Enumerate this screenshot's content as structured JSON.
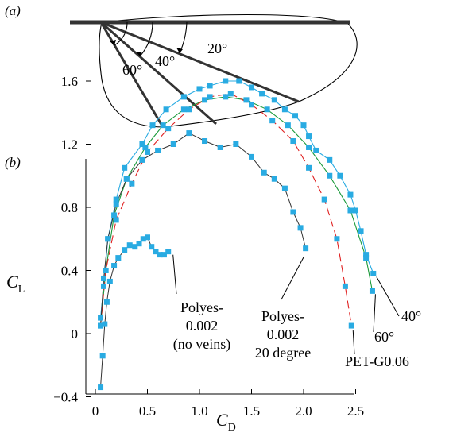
{
  "panel_a": {
    "label": "(a)",
    "angle_labels": [
      "60°",
      "40°",
      "20°"
    ]
  },
  "panel_b": {
    "label": "(b)"
  },
  "chart_data": {
    "type": "scatter",
    "xlabel_main": "C",
    "xlabel_sub": "D",
    "ylabel_main": "C",
    "ylabel_sub": "L",
    "xlim": [
      -0.1,
      2.75
    ],
    "ylim": [
      -0.5,
      1.65
    ],
    "x_ticks": [
      0,
      0.5,
      1.0,
      1.5,
      2.0,
      2.5
    ],
    "x_tick_labels": [
      "0",
      "0.5",
      "1.0",
      "1.5",
      "2.0",
      "2.5"
    ],
    "y_ticks": [
      -0.4,
      0,
      0.4,
      0.8,
      1.2,
      1.6
    ],
    "y_tick_labels": [
      "−0.4",
      "0",
      "0.4",
      "0.8",
      "1.2",
      "1.6"
    ],
    "colors": {
      "marker": "#29abe2",
      "line_40": "#29abe2",
      "line_60": "#1a9a3a",
      "line_pet": "#e02020",
      "line_polyes20": "#333333",
      "line_noveins": "#333333"
    },
    "series": [
      {
        "name": "40°",
        "line": "line_40",
        "x": [
          0.05,
          0.08,
          0.12,
          0.2,
          0.28,
          0.45,
          0.55,
          0.68,
          0.85,
          1.0,
          1.1,
          1.25,
          1.38,
          1.5,
          1.6,
          1.72,
          1.82,
          1.92,
          2.0,
          2.05,
          2.12,
          2.25,
          2.35,
          2.45,
          2.5,
          2.55,
          2.6,
          2.67
        ],
        "y": [
          0.1,
          0.3,
          0.6,
          0.85,
          1.05,
          1.2,
          1.32,
          1.42,
          1.5,
          1.55,
          1.57,
          1.6,
          1.6,
          1.56,
          1.52,
          1.48,
          1.42,
          1.38,
          1.32,
          1.25,
          1.16,
          1.1,
          1.0,
          0.88,
          0.78,
          0.65,
          0.5,
          0.38
        ]
      },
      {
        "name": "60°",
        "line": "line_60",
        "x": [
          0.05,
          0.1,
          0.18,
          0.3,
          0.48,
          0.65,
          0.85,
          1.05,
          1.25,
          1.45,
          1.65,
          1.85,
          2.05,
          2.25,
          2.45,
          2.6,
          2.66
        ],
        "y": [
          0.05,
          0.4,
          0.75,
          0.98,
          1.18,
          1.32,
          1.42,
          1.48,
          1.5,
          1.48,
          1.42,
          1.32,
          1.18,
          1.0,
          0.78,
          0.48,
          0.27
        ]
      },
      {
        "name": "PET-G0.06",
        "line": "line_pet",
        "x": [
          0.05,
          0.1,
          0.2,
          0.35,
          0.5,
          0.7,
          0.9,
          1.1,
          1.3,
          1.5,
          1.7,
          1.9,
          2.05,
          2.2,
          2.32,
          2.4,
          2.46
        ],
        "y": [
          0.05,
          0.4,
          0.72,
          0.95,
          1.15,
          1.3,
          1.42,
          1.5,
          1.52,
          1.45,
          1.35,
          1.22,
          1.05,
          0.85,
          0.6,
          0.3,
          0.05
        ]
      },
      {
        "name": "Polyes-0.002 20 degree",
        "line": "line_polyes20",
        "x": [
          0.05,
          0.08,
          0.12,
          0.2,
          0.3,
          0.45,
          0.6,
          0.75,
          0.9,
          1.05,
          1.2,
          1.35,
          1.5,
          1.62,
          1.72,
          1.82,
          1.9,
          1.97,
          2.02
        ],
        "y": [
          0.05,
          0.35,
          0.6,
          0.82,
          0.98,
          1.1,
          1.16,
          1.2,
          1.27,
          1.22,
          1.18,
          1.2,
          1.12,
          1.02,
          0.98,
          0.92,
          0.77,
          0.67,
          0.54
        ]
      },
      {
        "name": "Polyes-0.002 (no veins)",
        "line": "line_noveins",
        "x": [
          0.05,
          0.07,
          0.09,
          0.11,
          0.14,
          0.18,
          0.22,
          0.28,
          0.33,
          0.38,
          0.42,
          0.46,
          0.5,
          0.54,
          0.58,
          0.62,
          0.66,
          0.7
        ],
        "y": [
          -0.34,
          -0.14,
          0.06,
          0.2,
          0.33,
          0.43,
          0.48,
          0.53,
          0.56,
          0.55,
          0.57,
          0.6,
          0.61,
          0.55,
          0.52,
          0.5,
          0.5,
          0.52
        ]
      }
    ],
    "annotations": [
      {
        "text": "40°",
        "series": "40°"
      },
      {
        "text": "60°",
        "series": "60°"
      },
      {
        "text": "PET-G0.06",
        "series": "PET-G0.06"
      },
      {
        "lines": [
          "Polyes-",
          "0.002",
          "20 degree"
        ],
        "series": "Polyes-0.002 20 degree"
      },
      {
        "lines": [
          "Polyes-",
          "0.002",
          "(no veins)"
        ],
        "series": "Polyes-0.002 (no veins)"
      }
    ]
  }
}
